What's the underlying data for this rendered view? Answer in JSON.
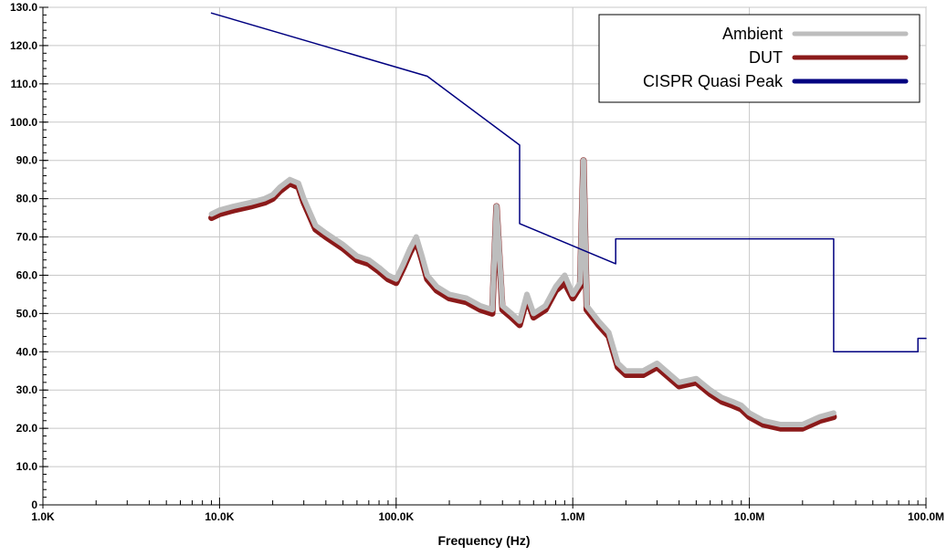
{
  "chart_data": {
    "type": "line",
    "title": "",
    "xlabel": "Frequency (Hz)",
    "ylabel": "",
    "x_scale": "log",
    "xlim": [
      1000,
      100000000
    ],
    "ylim": [
      0,
      130
    ],
    "x_tick_values": [
      1000,
      10000,
      100000,
      1000000,
      10000000,
      100000000
    ],
    "x_tick_labels": [
      "1.0K",
      "10.0K",
      "100.0K",
      "1.0M",
      "10.0M",
      "100.0M"
    ],
    "y_tick_values": [
      0,
      10,
      20,
      30,
      40,
      50,
      60,
      70,
      80,
      90,
      100,
      110,
      120,
      130
    ],
    "y_tick_labels": [
      "0",
      "10.0",
      "20.0",
      "30.0",
      "40.0",
      "50.0",
      "60.0",
      "70.0",
      "80.0",
      "90.0",
      "100.0",
      "110.0",
      "120.0",
      "130.0"
    ],
    "grid": true,
    "legend_position": "top-right",
    "series": [
      {
        "name": "Ambient",
        "color": "#bdbdbd",
        "x": [
          9000,
          10000,
          12000,
          15000,
          18000,
          20000,
          22000,
          25000,
          28000,
          30000,
          35000,
          40000,
          50000,
          60000,
          70000,
          80000,
          90000,
          100000,
          110000,
          120000,
          130000,
          140000,
          150000,
          170000,
          200000,
          250000,
          300000,
          350000,
          370000,
          400000,
          450000,
          500000,
          550000,
          600000,
          700000,
          800000,
          900000,
          1000000,
          1100000,
          1150000,
          1200000,
          1400000,
          1600000,
          1800000,
          2000000,
          2500000,
          3000000,
          4000000,
          5000000,
          6000000,
          7000000,
          8000000,
          9000000,
          10000000,
          12000000,
          15000000,
          20000000,
          25000000,
          30000000
        ],
        "y": [
          76,
          77,
          78,
          79,
          80,
          81,
          83,
          85,
          84,
          80,
          73,
          71,
          68,
          65,
          64,
          62,
          60,
          59,
          63,
          67,
          70,
          65,
          60,
          57,
          55,
          54,
          52,
          51,
          78,
          52,
          50,
          48,
          55,
          50,
          52,
          57,
          60,
          55,
          58,
          90,
          52,
          48,
          45,
          37,
          35,
          35,
          37,
          32,
          33,
          30,
          28,
          27,
          26,
          24,
          22,
          21,
          21,
          23,
          24
        ]
      },
      {
        "name": "DUT",
        "color": "#8b1a1a",
        "x": [
          9000,
          10000,
          12000,
          15000,
          18000,
          20000,
          22000,
          25000,
          28000,
          30000,
          35000,
          40000,
          50000,
          60000,
          70000,
          80000,
          90000,
          100000,
          110000,
          120000,
          130000,
          140000,
          150000,
          170000,
          200000,
          250000,
          300000,
          350000,
          370000,
          400000,
          450000,
          500000,
          550000,
          600000,
          700000,
          800000,
          900000,
          1000000,
          1100000,
          1150000,
          1200000,
          1400000,
          1600000,
          1800000,
          2000000,
          2500000,
          3000000,
          4000000,
          5000000,
          6000000,
          7000000,
          8000000,
          9000000,
          10000000,
          12000000,
          15000000,
          20000000,
          25000000,
          30000000
        ],
        "y": [
          75,
          76,
          77,
          78,
          79,
          80,
          82,
          84,
          83,
          79,
          72,
          70,
          67,
          64,
          63,
          61,
          59,
          58,
          62,
          66,
          69,
          64,
          59,
          56,
          54,
          53,
          51,
          50,
          78,
          51,
          49,
          47,
          54,
          49,
          51,
          56,
          58,
          54,
          57,
          90,
          51,
          47,
          44,
          36,
          34,
          34,
          36,
          31,
          32,
          29,
          27,
          26,
          25,
          23,
          21,
          20,
          20,
          22,
          23
        ]
      },
      {
        "name": "CISPR Quasi Peak",
        "color": "#000080",
        "x": [
          9000,
          150000,
          500000,
          500000,
          1750000,
          1750000,
          30000000,
          30000000,
          90000000,
          90000000,
          100000000
        ],
        "y": [
          128.5,
          112,
          94,
          73.5,
          63,
          69.5,
          69.5,
          40,
          40,
          43.5,
          43.5
        ]
      }
    ]
  }
}
